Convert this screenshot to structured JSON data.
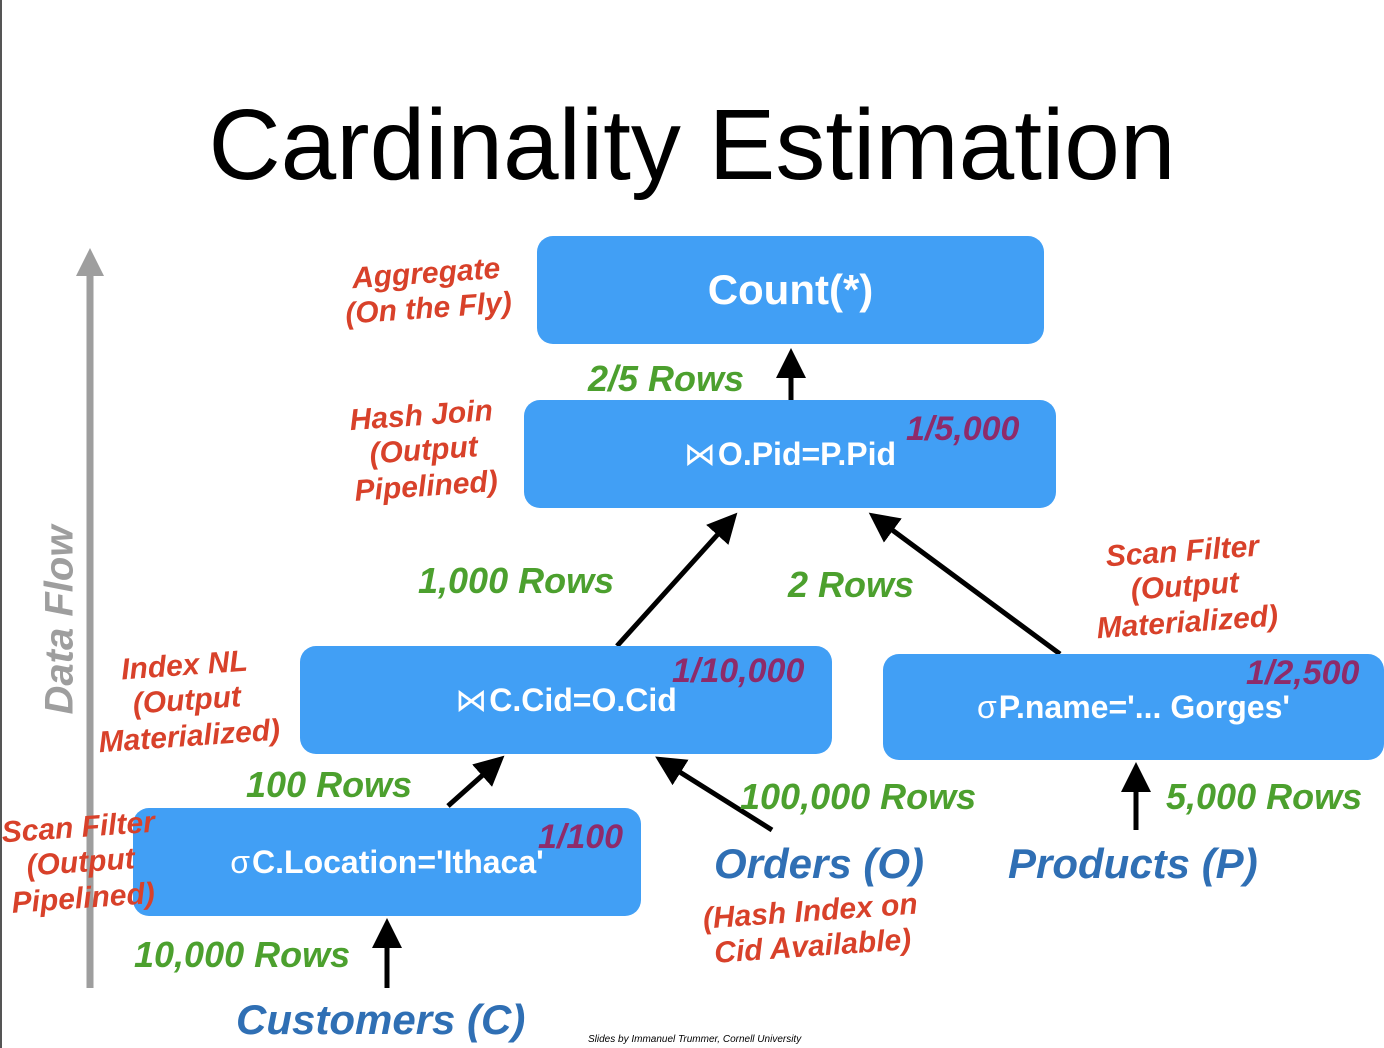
{
  "title": "Cardinality Estimation",
  "axis_label": "Data Flow",
  "credit": "Slides by Immanuel Trummer, Cornell University",
  "nodes": {
    "count": {
      "label": "Count(*)"
    },
    "join2": {
      "symbol": "⋈",
      "expr": "O.Pid=P.Pid",
      "selectivity": "1/5,000"
    },
    "join1": {
      "symbol": "⋈",
      "expr": "C.Cid=O.Cid",
      "selectivity": "1/10,000"
    },
    "filter_p": {
      "symbol": "σ",
      "expr": "P.name='... Gorges'",
      "selectivity": "1/2,500"
    },
    "filter_c": {
      "symbol": "σ",
      "expr": "C.Location='Ithaca'",
      "selectivity": "1/100"
    }
  },
  "tables": {
    "customers": "Customers (C)",
    "orders": "Orders (O)",
    "products": "Products (P)"
  },
  "row_counts": {
    "to_count": "2/5 Rows",
    "join1_out": "1,000 Rows",
    "filter_p_out": "2 Rows",
    "filter_c_out": "100 Rows",
    "orders_in": "100,000 Rows",
    "products_in": "5,000 Rows",
    "customers_in": "10,000 Rows"
  },
  "annotations": {
    "aggregate": [
      "Aggregate",
      "(On the Fly)"
    ],
    "hash_join": [
      "Hash Join",
      "(Output",
      "Pipelined)"
    ],
    "scan_filter_p": [
      "Scan Filter",
      "(Output",
      "Materialized)"
    ],
    "index_nl": [
      "Index NL",
      "(Output",
      "Materialized)"
    ],
    "scan_filter_c": [
      "Scan Filter",
      "(Output",
      "Pipelined)"
    ],
    "orders_note": [
      "(Hash Index on",
      "Cid Available)"
    ]
  },
  "colors": {
    "node_fill": "#419ff5",
    "row_count": "#4ca02e",
    "operator_note": "#d8412a",
    "selectivity": "#8e2b6a",
    "table_name": "#2f6fb4",
    "axis": "#9e9e9e"
  }
}
